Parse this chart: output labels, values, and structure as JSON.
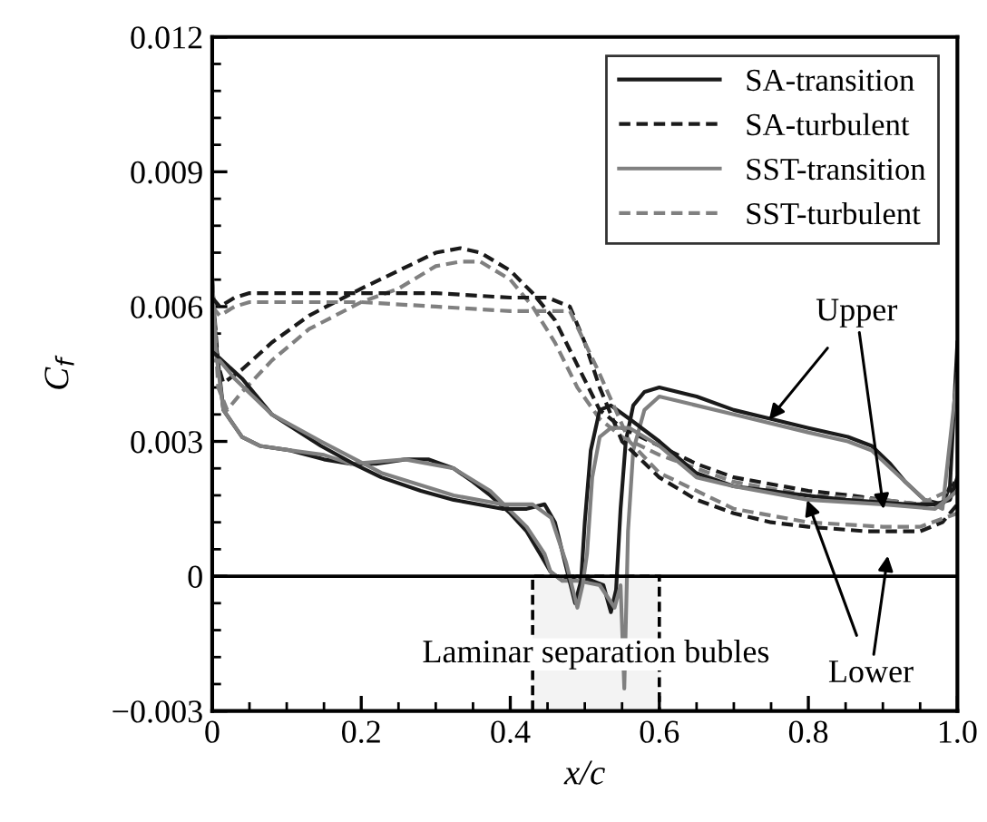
{
  "chart_data": {
    "type": "line",
    "xlabel": "x/c",
    "ylabel": "C$_{f}$",
    "xlim": [
      0,
      1.0
    ],
    "ylim": [
      -0.003,
      0.012
    ],
    "xticks": [
      0,
      0.2,
      0.4,
      0.6,
      0.8,
      {
        "value": 1.0,
        "label": "1.0"
      }
    ],
    "yticks": [
      {
        "value": -0.003,
        "label": "−0.003"
      },
      0,
      0.003,
      0.006,
      0.009,
      0.012
    ],
    "legend": "top right",
    "grid": false,
    "marker": "none",
    "series": [
      {
        "name": "SA-transition",
        "color": "#1a1a1a",
        "line_style": "solid",
        "x": [
          0,
          0.005,
          0.015,
          0.04,
          0.064,
          0.105,
          0.15,
          0.186,
          0.22,
          0.259,
          0.29,
          0.324,
          0.35,
          0.373,
          0.4,
          0.422,
          0.44,
          0.454,
          0.47,
          0.49,
          0.51,
          0.525,
          0.535,
          0.542,
          0.548,
          0.555,
          0.565,
          0.58,
          0.6,
          0.65,
          0.7,
          0.75,
          0.8,
          0.853,
          0.885,
          0.91,
          0.93,
          0.956,
          0.98,
          0.99,
          1.0
        ],
        "values": [
          0.0066,
          0.0052,
          0.0037,
          0.0031,
          0.0029,
          0.0028,
          0.0026,
          0.0025,
          0.0025,
          0.0026,
          0.0026,
          0.0024,
          0.0021,
          0.0018,
          0.0014,
          0.001,
          0.0005,
          0.0001,
          -0.0001,
          0.0,
          -0.0001,
          -0.0002,
          -0.0008,
          -0.0003,
          0.0015,
          0.003,
          0.0038,
          0.0041,
          0.0042,
          0.004,
          0.0037,
          0.0035,
          0.0033,
          0.0031,
          0.0029,
          0.0025,
          0.0021,
          0.0017,
          0.0016,
          0.002,
          0.0052
        ]
      },
      {
        "name": "SA-turbulent",
        "color": "#1a1a1a",
        "line_style": "dashed",
        "x": [
          0,
          0.008,
          0.015,
          0.04,
          0.08,
          0.13,
          0.2,
          0.25,
          0.3,
          0.333,
          0.36,
          0.4,
          0.43,
          0.46,
          0.49,
          0.52,
          0.55,
          0.6,
          0.65,
          0.7,
          0.8,
          0.856,
          0.9,
          0.95,
          0.98,
          1.0
        ],
        "values": [
          0.0065,
          0.0047,
          0.0043,
          0.0046,
          0.0052,
          0.0058,
          0.0064,
          0.0068,
          0.0072,
          0.0073,
          0.0072,
          0.0068,
          0.0063,
          0.0057,
          0.0047,
          0.0037,
          0.0033,
          0.0029,
          0.0025,
          0.0022,
          0.0019,
          0.0018,
          0.0017,
          0.0016,
          0.0016,
          0.0022
        ]
      },
      {
        "name": "SST-transition",
        "color": "#808080",
        "line_style": "solid",
        "x": [
          0,
          0.005,
          0.015,
          0.04,
          0.064,
          0.105,
          0.15,
          0.186,
          0.259,
          0.324,
          0.373,
          0.422,
          0.446,
          0.454,
          0.47,
          0.49,
          0.52,
          0.54,
          0.548,
          0.553,
          0.558,
          0.565,
          0.58,
          0.6,
          0.65,
          0.7,
          0.8,
          0.853,
          0.885,
          0.93,
          0.956,
          0.98,
          1.0
        ],
        "values": [
          0.0067,
          0.005,
          0.0037,
          0.0031,
          0.0029,
          0.0028,
          0.0027,
          0.0025,
          0.0026,
          0.0024,
          0.0019,
          0.0011,
          0.0005,
          0.0001,
          -0.0001,
          -0.0001,
          -0.0002,
          -0.0007,
          -0.0002,
          -0.0025,
          0.001,
          0.0028,
          0.0037,
          0.004,
          0.0038,
          0.0036,
          0.0032,
          0.003,
          0.0028,
          0.0021,
          0.0017,
          0.0015,
          0.0045
        ]
      },
      {
        "name": "SST-turbulent",
        "color": "#808080",
        "line_style": "dashed",
        "x": [
          0,
          0.008,
          0.02,
          0.04,
          0.08,
          0.13,
          0.2,
          0.25,
          0.3,
          0.333,
          0.36,
          0.4,
          0.43,
          0.46,
          0.49,
          0.52,
          0.55,
          0.6,
          0.7,
          0.8,
          0.9,
          0.95,
          1.0
        ],
        "values": [
          0.0066,
          0.0042,
          0.0037,
          0.0041,
          0.0048,
          0.0055,
          0.0061,
          0.0064,
          0.0069,
          0.007,
          0.007,
          0.0066,
          0.006,
          0.0052,
          0.0042,
          0.0035,
          0.0031,
          0.0027,
          0.0021,
          0.0018,
          0.0017,
          0.0016,
          0.002
        ]
      },
      {
        "color": "#1a1a1a",
        "line_style": "solid",
        "x": [
          0,
          0.007,
          0.02,
          0.04,
          0.08,
          0.146,
          0.19,
          0.227,
          0.28,
          0.324,
          0.389,
          0.422,
          0.446,
          0.46,
          0.475,
          0.487,
          0.495,
          0.5,
          0.508,
          0.52,
          0.535,
          0.56,
          0.6,
          0.649,
          0.7,
          0.75,
          0.796,
          0.85,
          0.934,
          0.97,
          0.99,
          1.0
        ],
        "values": [
          0.005,
          0.0049,
          0.0047,
          0.0044,
          0.0036,
          0.0029,
          0.0025,
          0.0022,
          0.0019,
          0.0017,
          0.0015,
          0.0015,
          0.0016,
          0.0012,
          0.0002,
          -0.0006,
          -0.0001,
          0.0012,
          0.0028,
          0.0037,
          0.0038,
          0.0035,
          0.003,
          0.0023,
          0.002,
          0.0019,
          0.0018,
          0.0017,
          0.0016,
          0.0016,
          0.0017,
          0.0022
        ]
      },
      {
        "color": "#1a1a1a",
        "line_style": "dashed",
        "x": [
          0,
          0.01,
          0.03,
          0.05,
          0.1,
          0.2,
          0.3,
          0.4,
          0.45,
          0.48,
          0.5,
          0.52,
          0.55,
          0.6,
          0.65,
          0.7,
          0.75,
          0.8,
          0.878,
          0.95,
          0.98,
          1.0
        ],
        "values": [
          0.0062,
          0.006,
          0.0062,
          0.0063,
          0.0063,
          0.0063,
          0.0063,
          0.0062,
          0.0062,
          0.006,
          0.0052,
          0.0042,
          0.003,
          0.0022,
          0.0017,
          0.0014,
          0.0012,
          0.0011,
          0.001,
          0.001,
          0.0012,
          0.0016
        ]
      },
      {
        "color": "#808080",
        "line_style": "solid",
        "x": [
          0,
          0.01,
          0.03,
          0.08,
          0.146,
          0.227,
          0.324,
          0.389,
          0.43,
          0.455,
          0.475,
          0.49,
          0.497,
          0.503,
          0.51,
          0.52,
          0.535,
          0.56,
          0.6,
          0.65,
          0.7,
          0.8,
          0.9,
          0.97,
          1.0
        ],
        "values": [
          0.0048,
          0.0048,
          0.0044,
          0.0036,
          0.003,
          0.0023,
          0.0018,
          0.0016,
          0.0016,
          0.0013,
          0.0003,
          -0.0007,
          -0.0002,
          0.0005,
          0.0022,
          0.0031,
          0.0033,
          0.0033,
          0.0029,
          0.0022,
          0.002,
          0.0017,
          0.0016,
          0.0015,
          0.0019
        ]
      },
      {
        "color": "#808080",
        "line_style": "dashed",
        "x": [
          0,
          0.01,
          0.03,
          0.05,
          0.2,
          0.3,
          0.4,
          0.48,
          0.52,
          0.56,
          0.6,
          0.7,
          0.8,
          0.9,
          0.95,
          1.0
        ],
        "values": [
          0.006,
          0.0058,
          0.006,
          0.0061,
          0.0061,
          0.006,
          0.0059,
          0.0059,
          0.0045,
          0.003,
          0.0023,
          0.0015,
          0.0012,
          0.0011,
          0.0011,
          0.0014
        ]
      }
    ],
    "ref_lines": [
      {
        "axis": "y",
        "value": 0,
        "color": "#000000",
        "line_style": "solid"
      }
    ],
    "bands": [
      {
        "axis": "x",
        "from": 0.43,
        "to": 0.6,
        "label": "Laminar separation bubles",
        "color": "#f3f3f3"
      }
    ],
    "annotations": [
      {
        "text": "Upper",
        "x": 0.743,
        "y": 0.0034
      },
      {
        "text": "Lower",
        "x": 0.796,
        "y": 0.0018
      }
    ]
  }
}
